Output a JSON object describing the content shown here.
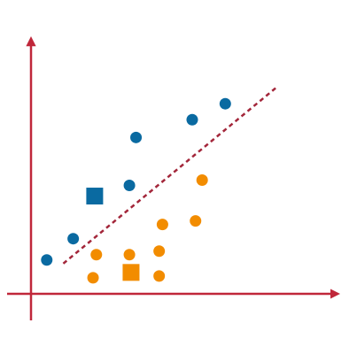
{
  "chart_data": {
    "type": "scatter",
    "title": "",
    "xlabel": "",
    "ylabel": "",
    "axes_labeled": false,
    "grid": false,
    "legend": "none",
    "colors": {
      "axis": "#c0273a",
      "boundary": "#a3263a",
      "series_a": "#0a6aa1",
      "series_b": "#f28c00"
    },
    "series": [
      {
        "color_key": "series_a",
        "marker": "circle",
        "points": [
          [
            0.5,
            2.1
          ],
          [
            1.3,
            3.3
          ],
          [
            3.0,
            6.3
          ],
          [
            3.2,
            9.0
          ],
          [
            4.9,
            10.0
          ],
          [
            5.9,
            10.9
          ]
        ]
      },
      {
        "color_key": "series_a",
        "marker": "square",
        "points": [
          [
            1.95,
            5.7
          ]
        ]
      },
      {
        "color_key": "series_b",
        "marker": "circle",
        "points": [
          [
            1.9,
            1.1
          ],
          [
            2.0,
            2.4
          ],
          [
            3.0,
            2.4
          ],
          [
            3.9,
            1.2
          ],
          [
            3.9,
            2.6
          ],
          [
            4.0,
            4.1
          ],
          [
            5.0,
            4.3
          ],
          [
            5.2,
            6.6
          ]
        ]
      },
      {
        "color_key": "series_b",
        "marker": "square",
        "points": [
          [
            3.05,
            1.4
          ]
        ]
      }
    ],
    "boundary_line": {
      "style": "dashed",
      "from": [
        1.0,
        1.9
      ],
      "to": [
        7.5,
        11.9
      ]
    },
    "xlim": [
      -0.7,
      9.0
    ],
    "ylim": [
      -1.2,
      14.0
    ]
  }
}
